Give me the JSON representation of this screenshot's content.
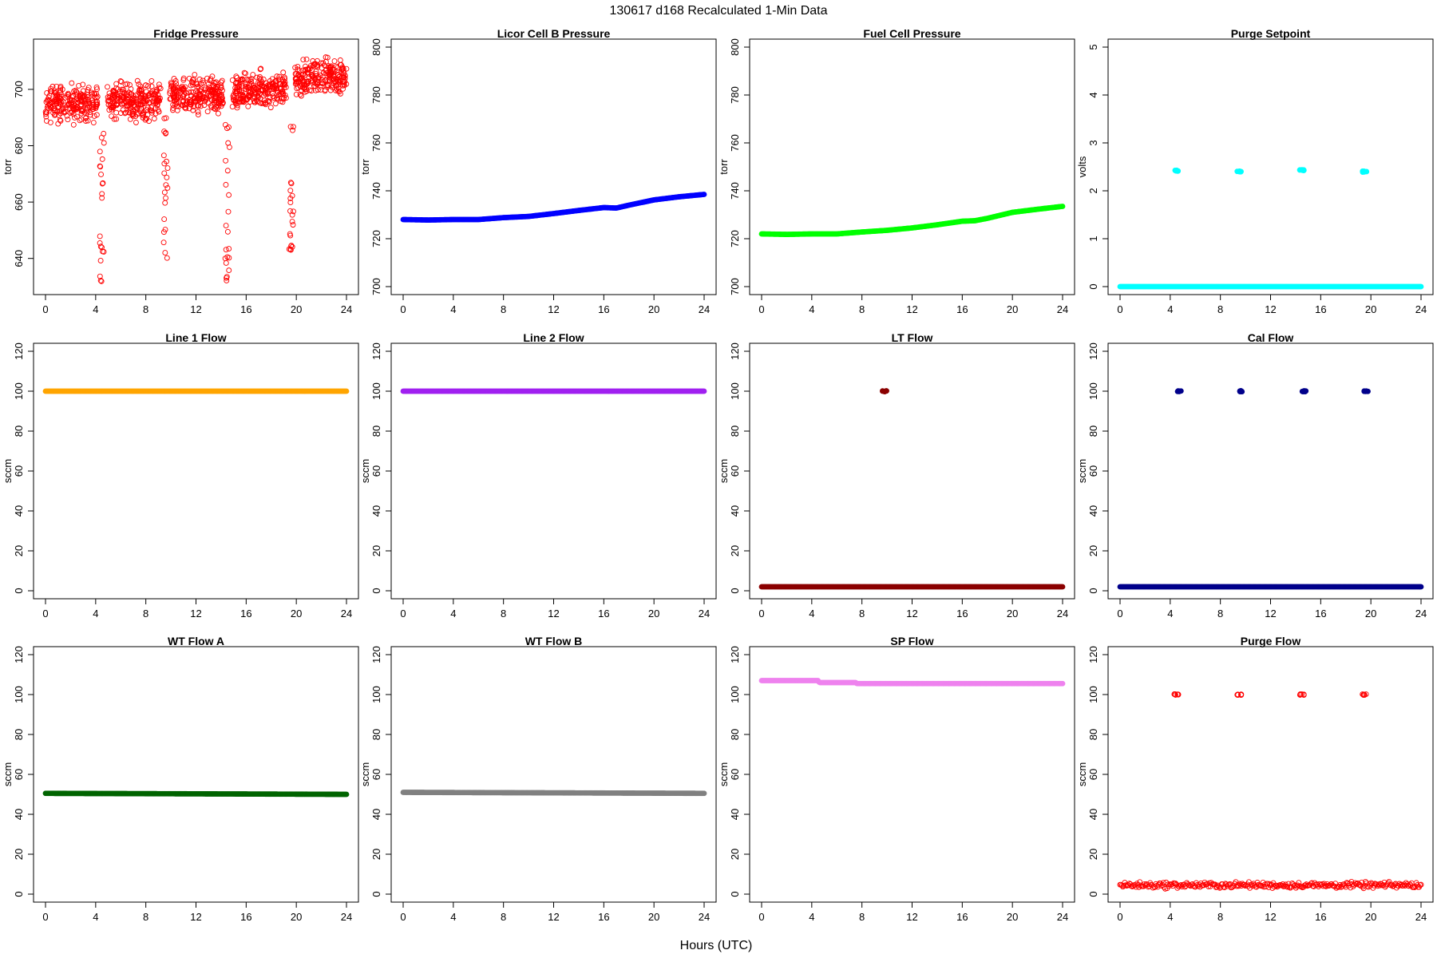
{
  "title": "130617   d168   Recalculated 1-Min Data",
  "xlabel": "Hours (UTC)",
  "chart_data": [
    {
      "type": "scatter",
      "title": "Fridge Pressure",
      "ylabel": "torr",
      "xlim": [
        0,
        24
      ],
      "ylim": [
        630,
        715
      ],
      "xticks": [
        0,
        4,
        8,
        12,
        16,
        20,
        24
      ],
      "yticks": [
        640,
        660,
        680,
        700
      ],
      "yticks_labels": [
        "640",
        "660",
        "680",
        "700"
      ],
      "color": "#ff0000",
      "marker": "open",
      "noise": "high",
      "segments": [
        {
          "x": [
            0,
            4.2
          ],
          "y": [
            695,
            695
          ]
        },
        {
          "x": [
            4.9,
            9.2
          ],
          "y": [
            696,
            696
          ]
        },
        {
          "x": [
            9.9,
            14.2
          ],
          "y": [
            697,
            698
          ]
        },
        {
          "x": [
            14.9,
            19.2
          ],
          "y": [
            699,
            700
          ]
        },
        {
          "x": [
            19.9,
            24
          ],
          "y": [
            704,
            705
          ]
        }
      ],
      "spikes": [
        {
          "x": 4.5,
          "min": 631
        },
        {
          "x": 9.6,
          "min": 640
        },
        {
          "x": 14.5,
          "min": 632
        },
        {
          "x": 19.6,
          "min": 643
        }
      ]
    },
    {
      "type": "scatter",
      "title": "Licor Cell B Pressure",
      "ylabel": "torr",
      "xlim": [
        0,
        24
      ],
      "ylim": [
        700,
        800
      ],
      "xticks": [
        0,
        4,
        8,
        12,
        16,
        20,
        24
      ],
      "yticks": [
        700,
        720,
        740,
        760,
        780,
        800
      ],
      "yticks_labels": [
        "700",
        "720",
        "740",
        "760",
        "780",
        "800"
      ],
      "color": "#0000ff",
      "marker": "filled",
      "x": [
        0,
        2,
        4,
        6,
        8,
        10,
        12,
        14,
        16,
        17,
        18,
        20,
        22,
        24
      ],
      "y": [
        728,
        727.8,
        728,
        728,
        728.8,
        729.3,
        730.5,
        731.8,
        733,
        732.8,
        734,
        736.2,
        737.5,
        738.5
      ]
    },
    {
      "type": "scatter",
      "title": "Fuel Cell Pressure",
      "ylabel": "torr",
      "xlim": [
        0,
        24
      ],
      "ylim": [
        700,
        800
      ],
      "xticks": [
        0,
        4,
        8,
        12,
        16,
        20,
        24
      ],
      "yticks": [
        700,
        720,
        740,
        760,
        780,
        800
      ],
      "yticks_labels": [
        "700",
        "720",
        "740",
        "760",
        "780",
        "800"
      ],
      "color": "#00ff00",
      "marker": "filled",
      "x": [
        0,
        2,
        4,
        6,
        8,
        10,
        12,
        14,
        16,
        17,
        18,
        20,
        22,
        24
      ],
      "y": [
        722,
        721.8,
        722,
        722,
        722.8,
        723.5,
        724.5,
        725.8,
        727.3,
        727.5,
        728.5,
        731,
        732.3,
        733.5
      ]
    },
    {
      "type": "scatter",
      "title": "Purge Setpoint",
      "ylabel": "volts",
      "xlim": [
        0,
        24
      ],
      "ylim": [
        0,
        5
      ],
      "xticks": [
        0,
        4,
        8,
        12,
        16,
        20,
        24
      ],
      "yticks": [
        0,
        1,
        2,
        3,
        4,
        5
      ],
      "yticks_labels": [
        "0",
        "1",
        "2",
        "3",
        "4",
        "5"
      ],
      "color": "#00ffff",
      "marker": "filled",
      "x": [
        0,
        24
      ],
      "y": [
        0,
        0
      ],
      "clusters": [
        {
          "x": 4.5,
          "y": 2.42
        },
        {
          "x": 9.5,
          "y": 2.4
        },
        {
          "x": 14.5,
          "y": 2.43
        },
        {
          "x": 19.5,
          "y": 2.4
        }
      ]
    },
    {
      "type": "scatter",
      "title": "Line 1 Flow",
      "ylabel": "sccm",
      "xlim": [
        0,
        24
      ],
      "ylim": [
        0,
        120
      ],
      "xticks": [
        0,
        4,
        8,
        12,
        16,
        20,
        24
      ],
      "yticks": [
        0,
        20,
        40,
        60,
        80,
        100,
        120
      ],
      "yticks_labels": [
        "0",
        "20",
        "40",
        "60",
        "80",
        "100",
        "120"
      ],
      "color": "#ffa500",
      "marker": "filled",
      "x": [
        0,
        24
      ],
      "y": [
        100,
        100
      ]
    },
    {
      "type": "scatter",
      "title": "Line 2 Flow",
      "ylabel": "sccm",
      "xlim": [
        0,
        24
      ],
      "ylim": [
        0,
        120
      ],
      "xticks": [
        0,
        4,
        8,
        12,
        16,
        20,
        24
      ],
      "yticks": [
        0,
        20,
        40,
        60,
        80,
        100,
        120
      ],
      "yticks_labels": [
        "0",
        "20",
        "40",
        "60",
        "80",
        "100",
        "120"
      ],
      "color": "#a020f0",
      "marker": "filled",
      "x": [
        0,
        24
      ],
      "y": [
        100,
        100
      ]
    },
    {
      "type": "scatter",
      "title": "LT Flow",
      "ylabel": "sccm",
      "xlim": [
        0,
        24
      ],
      "ylim": [
        0,
        120
      ],
      "xticks": [
        0,
        4,
        8,
        12,
        16,
        20,
        24
      ],
      "yticks": [
        0,
        20,
        40,
        60,
        80,
        100,
        120
      ],
      "yticks_labels": [
        "0",
        "20",
        "40",
        "60",
        "80",
        "100",
        "120"
      ],
      "color": "#8b0000",
      "marker": "filled",
      "x": [
        0,
        24
      ],
      "y": [
        2,
        2
      ],
      "clusters": [
        {
          "x": 9.8,
          "y": 100
        }
      ]
    },
    {
      "type": "scatter",
      "title": "Cal Flow",
      "ylabel": "sccm",
      "xlim": [
        0,
        24
      ],
      "ylim": [
        0,
        120
      ],
      "xticks": [
        0,
        4,
        8,
        12,
        16,
        20,
        24
      ],
      "yticks": [
        0,
        20,
        40,
        60,
        80,
        100,
        120
      ],
      "yticks_labels": [
        "0",
        "20",
        "40",
        "60",
        "80",
        "100",
        "120"
      ],
      "color": "#00008b",
      "marker": "filled",
      "x": [
        0,
        24
      ],
      "y": [
        2,
        2
      ],
      "clusters": [
        {
          "x": 4.7,
          "y": 100
        },
        {
          "x": 9.6,
          "y": 100
        },
        {
          "x": 14.7,
          "y": 100
        },
        {
          "x": 19.6,
          "y": 100
        }
      ]
    },
    {
      "type": "scatter",
      "title": "WT Flow A",
      "ylabel": "sccm",
      "xlim": [
        0,
        24
      ],
      "ylim": [
        0,
        120
      ],
      "xticks": [
        0,
        4,
        8,
        12,
        16,
        20,
        24
      ],
      "yticks": [
        0,
        20,
        40,
        60,
        80,
        100,
        120
      ],
      "yticks_labels": [
        "0",
        "20",
        "40",
        "60",
        "80",
        "100",
        "120"
      ],
      "color": "#006400",
      "marker": "filled",
      "x": [
        0,
        24
      ],
      "y": [
        50.5,
        50
      ]
    },
    {
      "type": "scatter",
      "title": "WT Flow B",
      "ylabel": "sccm",
      "xlim": [
        0,
        24
      ],
      "ylim": [
        0,
        120
      ],
      "xticks": [
        0,
        4,
        8,
        12,
        16,
        20,
        24
      ],
      "yticks": [
        0,
        20,
        40,
        60,
        80,
        100,
        120
      ],
      "yticks_labels": [
        "0",
        "20",
        "40",
        "60",
        "80",
        "100",
        "120"
      ],
      "color": "#808080",
      "marker": "filled",
      "x": [
        0,
        24
      ],
      "y": [
        51,
        50.5
      ]
    },
    {
      "type": "scatter",
      "title": "SP Flow",
      "ylabel": "sccm",
      "xlim": [
        0,
        24
      ],
      "ylim": [
        0,
        120
      ],
      "xticks": [
        0,
        4,
        8,
        12,
        16,
        20,
        24
      ],
      "yticks": [
        0,
        20,
        40,
        60,
        80,
        100,
        120
      ],
      "yticks_labels": [
        "0",
        "20",
        "40",
        "60",
        "80",
        "100",
        "120"
      ],
      "color": "#ee82ee",
      "marker": "filled",
      "x": [
        0,
        4.5,
        4.6,
        7.5,
        7.6,
        24
      ],
      "y": [
        107,
        107,
        106,
        106,
        105.5,
        105.5
      ]
    },
    {
      "type": "scatter",
      "title": "Purge Flow",
      "ylabel": "sccm",
      "xlim": [
        0,
        24
      ],
      "ylim": [
        0,
        120
      ],
      "xticks": [
        0,
        4,
        8,
        12,
        16,
        20,
        24
      ],
      "yticks": [
        0,
        20,
        40,
        60,
        80,
        100,
        120
      ],
      "yticks_labels": [
        "0",
        "20",
        "40",
        "60",
        "80",
        "100",
        "120"
      ],
      "color": "#ff0000",
      "marker": "open",
      "x": [
        0,
        24
      ],
      "y": [
        4.5,
        4.5
      ],
      "noise": "low",
      "clusters": [
        {
          "x": 4.5,
          "y": 100
        },
        {
          "x": 9.5,
          "y": 100
        },
        {
          "x": 14.5,
          "y": 100
        },
        {
          "x": 19.5,
          "y": 100
        }
      ]
    }
  ]
}
